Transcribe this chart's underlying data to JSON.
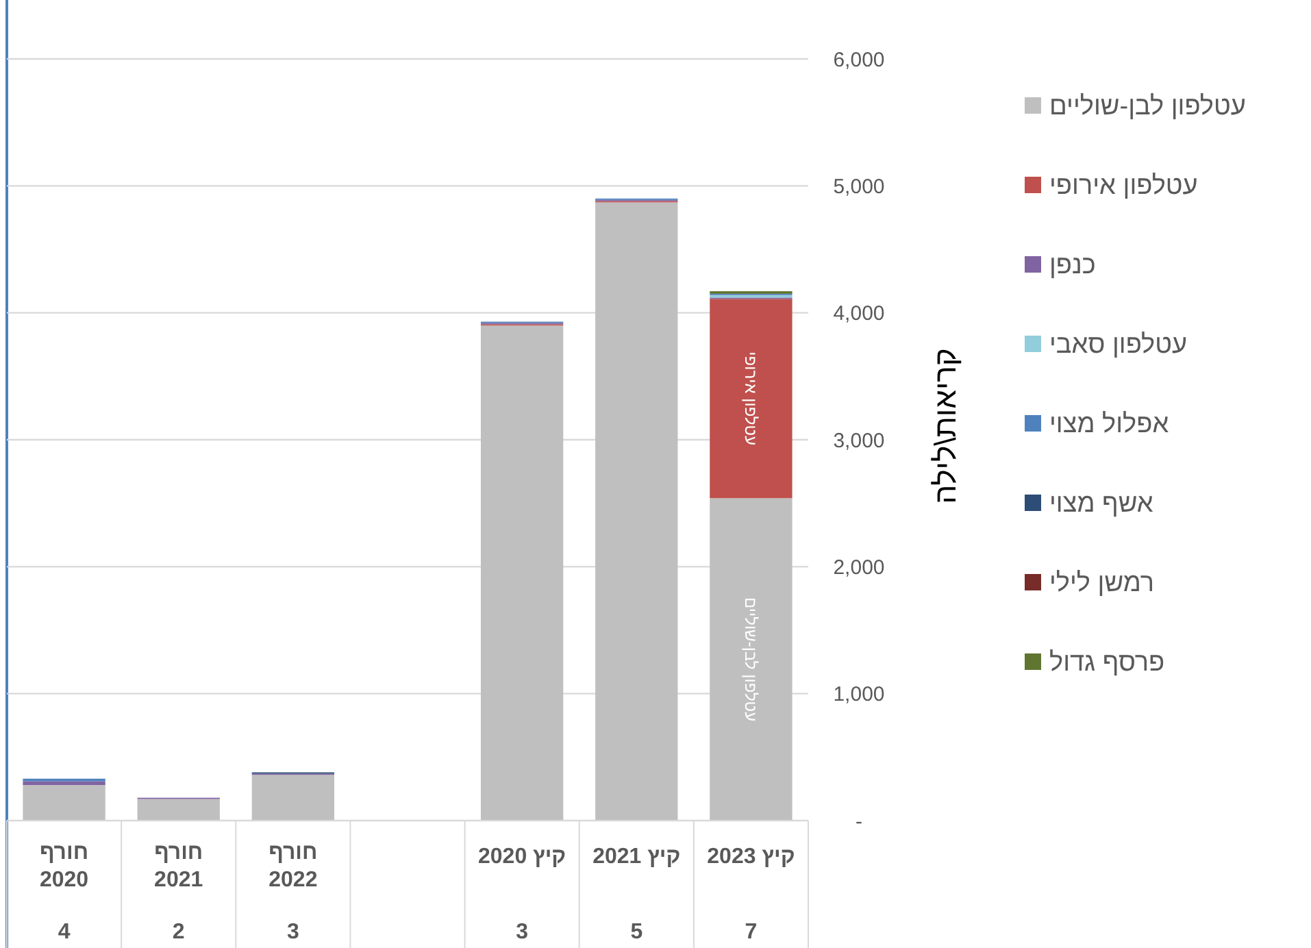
{
  "chart_data": {
    "type": "bar",
    "stacked": true,
    "ylabel": "קריאות\\לילה",
    "categories": [
      "חורף 2020\n4",
      "חורף 2021\n2",
      "חורף 2022\n3",
      null,
      "קיץ 2020\n3",
      "קיץ 2021\n5",
      "קיץ 2023\n7"
    ],
    "series": [
      {
        "name": "עטלפון לבן-שוליים",
        "color": "#bfbfbf",
        "values": [
          280,
          170,
          360,
          null,
          3900,
          4870,
          2540
        ],
        "value_labels": [
          null,
          null,
          null,
          null,
          null,
          null,
          "עטלפון לבן-שוליים"
        ]
      },
      {
        "name": "עטלפון אירופי",
        "color": "#c0504d",
        "values": [
          0,
          0,
          0,
          null,
          10,
          10,
          1570
        ],
        "value_labels": [
          null,
          null,
          null,
          null,
          null,
          null,
          "עטלפון אירופי"
        ]
      },
      {
        "name": "כנפן",
        "color": "#8064a2",
        "values": [
          30,
          10,
          10,
          null,
          10,
          10,
          10
        ]
      },
      {
        "name": "עטלפון סאבי",
        "color": "#92cddc",
        "values": [
          0,
          0,
          0,
          null,
          0,
          0,
          20
        ]
      },
      {
        "name": "אפלול מצוי",
        "color": "#4f81bd",
        "values": [
          20,
          0,
          0,
          null,
          10,
          10,
          10
        ]
      },
      {
        "name": "אשף מצוי",
        "color": "#2c4d75",
        "values": [
          0,
          0,
          10,
          null,
          0,
          0,
          0
        ]
      },
      {
        "name": "רמשן לילי",
        "color": "#772c2a",
        "values": [
          0,
          0,
          0,
          null,
          0,
          0,
          0
        ]
      },
      {
        "name": "פרסף גדול",
        "color": "#5f7530",
        "values": [
          0,
          0,
          0,
          null,
          0,
          0,
          20
        ]
      }
    ],
    "ylim": [
      0,
      6000
    ],
    "yticks": [
      {
        "value": 0,
        "label": "-"
      },
      {
        "value": 1000,
        "label": "1,000"
      },
      {
        "value": 2000,
        "label": "2,000"
      },
      {
        "value": 3000,
        "label": "3,000"
      },
      {
        "value": 4000,
        "label": "4,000"
      },
      {
        "value": 5000,
        "label": "5,000"
      },
      {
        "value": 6000,
        "label": "6,000"
      }
    ],
    "grid": "y",
    "legend": "right"
  }
}
